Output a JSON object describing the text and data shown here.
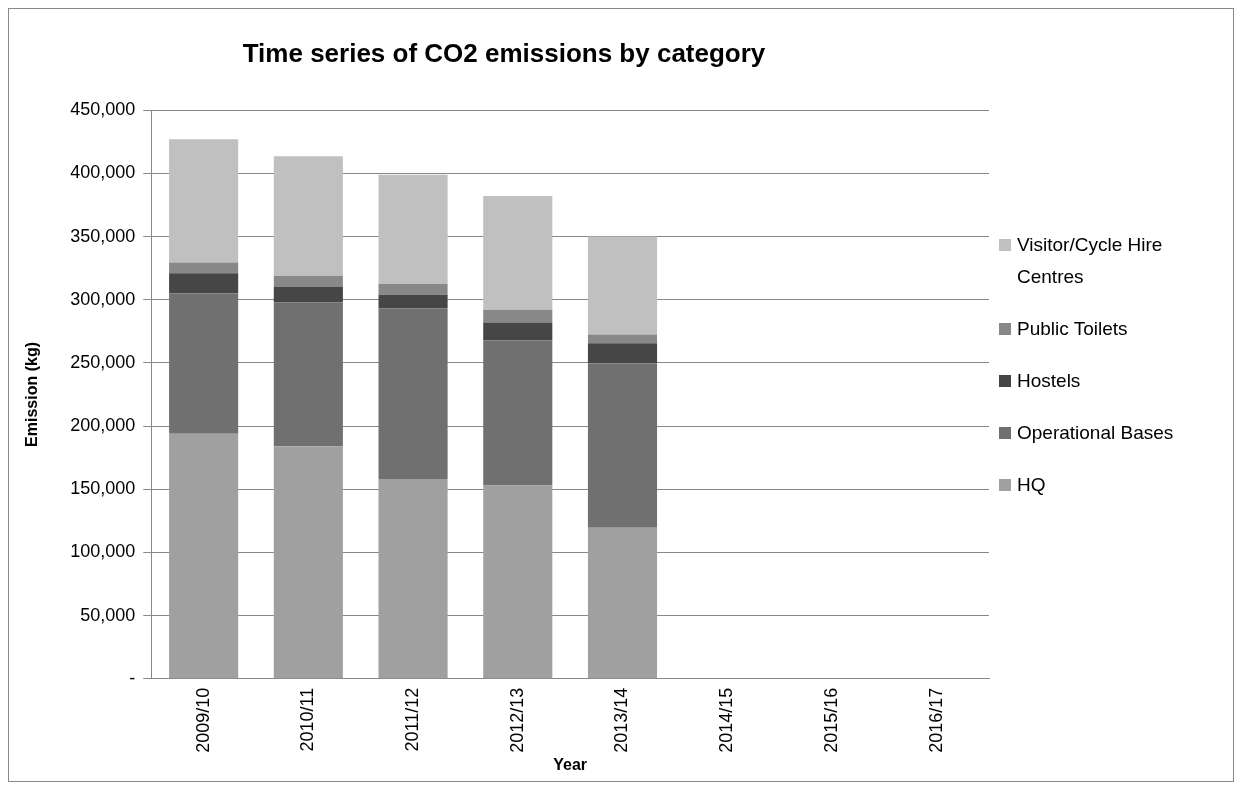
{
  "chart_data": {
    "type": "bar",
    "stacked": true,
    "title": "Time series of CO2 emissions by category",
    "xlabel": "Year",
    "ylabel": "Emission (kg)",
    "categories": [
      "2009/10",
      "2010/11",
      "2011/12",
      "2012/13",
      "2013/14",
      "2014/15",
      "2015/16",
      "2016/17"
    ],
    "series": [
      {
        "name": "HQ",
        "color": "#a0a0a0",
        "values": [
          194000,
          184000,
          158000,
          153000,
          119500,
          null,
          null,
          null
        ]
      },
      {
        "name": "Operational Bases",
        "color": "#707070",
        "values": [
          111000,
          114000,
          135000,
          115000,
          130000,
          null,
          null,
          null
        ]
      },
      {
        "name": "Hostels",
        "color": "#464646",
        "values": [
          16000,
          12000,
          11000,
          14000,
          16000,
          null,
          null,
          null
        ]
      },
      {
        "name": "Public Toilets",
        "color": "#888888",
        "values": [
          8500,
          9000,
          8500,
          10000,
          7000,
          null,
          null,
          null
        ]
      },
      {
        "name": "Visitor/Cycle Hire Centres",
        "color": "#c0c0c0",
        "values": [
          97500,
          94500,
          86500,
          90000,
          77500,
          null,
          null,
          null
        ]
      }
    ],
    "ylim": [
      0,
      450000
    ],
    "yticks": [
      {
        "value": 0,
        "label": "-"
      },
      {
        "value": 50000,
        "label": "50,000"
      },
      {
        "value": 100000,
        "label": "100,000"
      },
      {
        "value": 150000,
        "label": "150,000"
      },
      {
        "value": 200000,
        "label": "200,000"
      },
      {
        "value": 250000,
        "label": "250,000"
      },
      {
        "value": 300000,
        "label": "300,000"
      },
      {
        "value": 350000,
        "label": "350,000"
      },
      {
        "value": 400000,
        "label": "400,000"
      },
      {
        "value": 450000,
        "label": "450,000"
      }
    ],
    "grid": "y",
    "legend": "right"
  }
}
